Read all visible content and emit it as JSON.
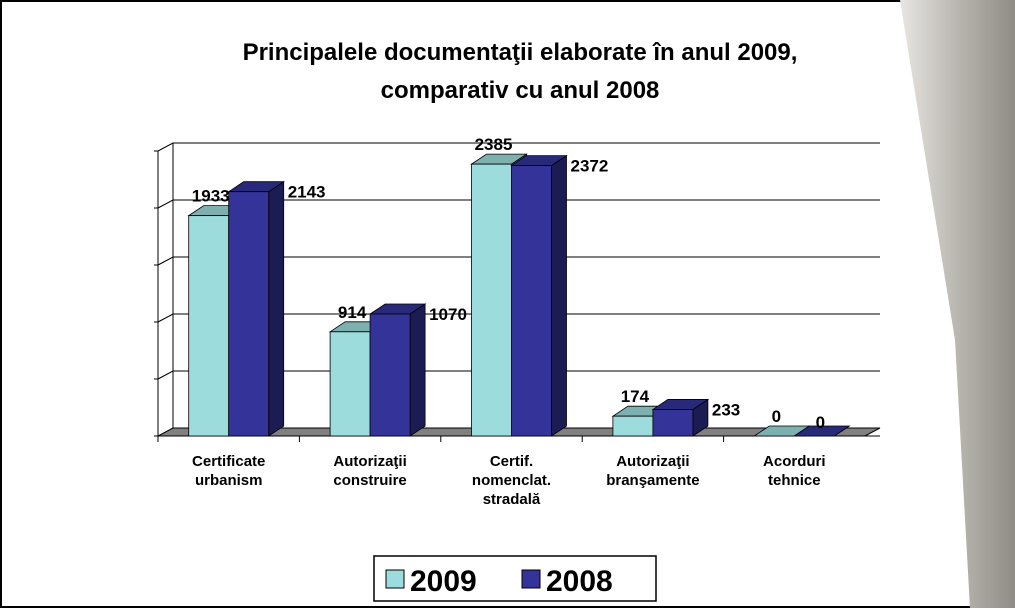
{
  "chart_data": {
    "type": "bar3d",
    "title": "Principalele documentaţii elaborate în anul 2009,",
    "subtitle": "comparativ cu anul 2008",
    "categories": [
      "Certificate urbanism",
      "Autorizaţii construire",
      "Certif. nomenclat. stradală",
      "Autorizaţii branşamente",
      "Acorduri tehnice"
    ],
    "series": [
      {
        "name": "2009",
        "color": "#9ddcdc",
        "values": [
          1933,
          914,
          2385,
          174,
          0
        ]
      },
      {
        "name": "2008",
        "color": "#333399",
        "values": [
          2143,
          1070,
          2372,
          233,
          0
        ]
      }
    ],
    "ylim": [
      0,
      2500
    ],
    "yticks": [
      0,
      500,
      1000,
      1500,
      2000,
      2500
    ],
    "grid": true,
    "legend": "bottom"
  }
}
